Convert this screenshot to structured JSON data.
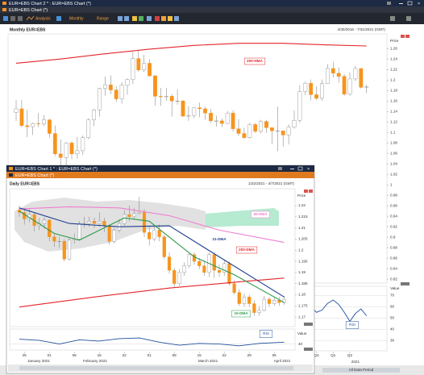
{
  "outer_window": {
    "title": "EUR=EBS Chart 2 * : EUR=EBS Chart (*)",
    "tab": "EUR=EBS Chart (*)",
    "toolbar": [
      "Analysis",
      "Monthly",
      "Range"
    ],
    "chart": {
      "header": "Monthly EUR=EBS",
      "date_range": "4/30/2016 - 7/31/2021 (GMT)",
      "axis_label": "Price",
      "ylim": [
        0.814,
        1.285
      ],
      "yticks": [
        1.26,
        1.24,
        1.22,
        1.2,
        1.18,
        1.16,
        1.14,
        1.12,
        1.1,
        1.08,
        1.06,
        1.04,
        1.02,
        1,
        0.98,
        0.96,
        0.94,
        0.92,
        0.9,
        0.88,
        0.86,
        0.84,
        0.82
      ],
      "up_color": "#ffffff",
      "down_color": "#f7941d",
      "open": [
        1.138,
        1.145,
        1.113,
        1.111,
        1.117,
        1.116,
        1.124,
        1.098,
        1.059,
        1.052,
        1.08,
        1.059,
        1.065,
        1.09,
        1.124,
        1.143,
        1.184,
        1.191,
        1.181,
        1.164,
        1.19,
        1.201,
        1.241,
        1.219,
        1.232,
        1.208,
        1.169,
        1.168,
        1.169,
        1.16,
        1.16,
        1.131,
        1.132,
        1.147,
        1.145,
        1.137,
        1.122,
        1.122,
        1.117,
        1.137,
        1.107,
        1.098,
        1.09,
        1.115,
        1.102,
        1.121,
        1.109,
        1.103,
        1.103,
        1.095,
        1.11,
        1.123,
        1.178,
        1.194,
        1.172,
        1.165,
        1.193,
        1.222,
        1.213,
        1.207,
        1.173,
        1.202,
        1.222,
        1.186
      ],
      "high": [
        1.162,
        1.162,
        1.143,
        1.119,
        1.137,
        1.133,
        1.126,
        1.113,
        1.087,
        1.082,
        1.083,
        1.091,
        1.094,
        1.127,
        1.145,
        1.185,
        1.207,
        1.209,
        1.188,
        1.196,
        1.203,
        1.254,
        1.256,
        1.248,
        1.24,
        1.21,
        1.185,
        1.185,
        1.173,
        1.182,
        1.162,
        1.15,
        1.148,
        1.157,
        1.149,
        1.145,
        1.132,
        1.127,
        1.141,
        1.142,
        1.125,
        1.109,
        1.118,
        1.118,
        1.124,
        1.124,
        1.109,
        1.149,
        1.101,
        1.115,
        1.142,
        1.19,
        1.197,
        1.201,
        1.188,
        1.201,
        1.23,
        1.235,
        1.224,
        1.211,
        1.215,
        1.227,
        1.222,
        1.191
      ],
      "low": [
        1.122,
        1.11,
        1.091,
        1.095,
        1.11,
        1.112,
        1.09,
        1.055,
        1.035,
        1.034,
        1.049,
        1.05,
        1.057,
        1.087,
        1.112,
        1.13,
        1.17,
        1.173,
        1.158,
        1.155,
        1.172,
        1.192,
        1.216,
        1.215,
        1.206,
        1.151,
        1.151,
        1.16,
        1.13,
        1.153,
        1.13,
        1.122,
        1.127,
        1.129,
        1.124,
        1.118,
        1.111,
        1.11,
        1.116,
        1.102,
        1.093,
        1.088,
        1.088,
        1.099,
        1.098,
        1.099,
        1.078,
        1.064,
        1.073,
        1.077,
        1.107,
        1.118,
        1.171,
        1.161,
        1.162,
        1.16,
        1.193,
        1.205,
        1.195,
        1.17,
        1.17,
        1.198,
        1.184,
        1.175
      ],
      "close": [
        1.145,
        1.113,
        1.111,
        1.117,
        1.116,
        1.124,
        1.098,
        1.059,
        1.052,
        1.08,
        1.059,
        1.065,
        1.09,
        1.124,
        1.143,
        1.184,
        1.191,
        1.181,
        1.164,
        1.19,
        1.201,
        1.241,
        1.219,
        1.232,
        1.208,
        1.169,
        1.168,
        1.169,
        1.16,
        1.16,
        1.131,
        1.132,
        1.147,
        1.145,
        1.137,
        1.122,
        1.122,
        1.117,
        1.137,
        1.107,
        1.098,
        1.09,
        1.115,
        1.102,
        1.121,
        1.109,
        1.103,
        1.103,
        1.095,
        1.11,
        1.123,
        1.178,
        1.194,
        1.172,
        1.165,
        1.193,
        1.222,
        1.213,
        1.207,
        1.173,
        1.202,
        1.222,
        1.186,
        1.187
      ],
      "overlay": {
        "name": "200-HMA",
        "color": "#e3262b",
        "x": [
          0,
          8,
          16,
          24,
          32,
          40,
          48,
          56,
          63
        ],
        "values": [
          1.232,
          1.24,
          1.25,
          1.259,
          1.266,
          1.27,
          1.27,
          1.267,
          1.265
        ]
      },
      "xticks": [
        {
          "value": 54,
          "label": "Q4"
        },
        {
          "value": 57,
          "label": "Q1"
        },
        {
          "value": 60,
          "label": "Q2"
        }
      ],
      "year_label": {
        "value": 61,
        "label": "2021"
      },
      "scroll_label": "All Data Period",
      "rsi": {
        "name": "RSI",
        "axis_label": "Value",
        "color": "#1f4e9c",
        "ylim": [
          23,
          76
        ],
        "yticks": [
          70,
          60,
          50,
          40,
          30
        ],
        "x": [
          53,
          54,
          55,
          56,
          57,
          58,
          59,
          60,
          61,
          62,
          63
        ],
        "values": [
          60,
          55,
          57,
          63,
          66,
          62,
          55,
          47,
          54,
          58,
          52
        ]
      }
    }
  },
  "inner_window": {
    "title": "EUR=EBS Chart 1 * : EUR=EBS Chart (*)",
    "tab": "EUR=EBS Chart (*)",
    "chart": {
      "header": "Daily EUR=EBS",
      "date_range": "1/22/2021 - 4/7/2021 (GMT)",
      "axis_label": "Price",
      "ylim": [
        1.1657,
        1.2276
      ],
      "yticks": [
        1.22,
        1.215,
        1.21,
        1.205,
        1.2,
        1.195,
        1.19,
        1.185,
        1.18,
        1.175,
        1.17
      ],
      "up_color": "#ffffff",
      "down_color": "#f7941d",
      "open": [
        1.218,
        1.217,
        1.214,
        1.216,
        1.211,
        1.212,
        1.2135,
        1.206,
        1.204,
        1.204,
        1.196,
        1.2045,
        1.205,
        1.212,
        1.212,
        1.213,
        1.212,
        1.213,
        1.211,
        1.204,
        1.209,
        1.212,
        1.216,
        1.215,
        1.2165,
        1.217,
        1.208,
        1.205,
        1.209,
        1.206,
        1.197,
        1.191,
        1.185,
        1.19,
        1.193,
        1.198,
        1.195,
        1.193,
        1.19,
        1.198,
        1.191,
        1.19,
        1.194,
        1.185,
        1.181,
        1.176,
        1.179,
        1.176,
        1.172,
        1.173,
        1.178,
        1.176,
        1.1775,
        1.1765
      ],
      "high": [
        1.22,
        1.219,
        1.2185,
        1.217,
        1.2145,
        1.215,
        1.214,
        1.2075,
        1.206,
        1.205,
        1.2055,
        1.2075,
        1.213,
        1.215,
        1.215,
        1.2145,
        1.217,
        1.2145,
        1.2115,
        1.21,
        1.214,
        1.218,
        1.22,
        1.219,
        1.224,
        1.2185,
        1.211,
        1.211,
        1.2115,
        1.207,
        1.199,
        1.192,
        1.1915,
        1.1945,
        1.199,
        1.199,
        1.1965,
        1.195,
        1.199,
        1.199,
        1.1935,
        1.1955,
        1.195,
        1.1865,
        1.1825,
        1.1805,
        1.18,
        1.1775,
        1.175,
        1.1795,
        1.179,
        1.179,
        1.179,
        1.1795
      ],
      "low": [
        1.215,
        1.2115,
        1.2125,
        1.2085,
        1.209,
        1.2095,
        1.204,
        1.2015,
        1.201,
        1.195,
        1.1955,
        1.203,
        1.2045,
        1.21,
        1.2105,
        1.21,
        1.2105,
        1.208,
        1.2025,
        1.203,
        1.208,
        1.211,
        1.213,
        1.214,
        1.216,
        1.206,
        1.202,
        1.204,
        1.204,
        1.196,
        1.1895,
        1.1835,
        1.184,
        1.1885,
        1.192,
        1.1935,
        1.1915,
        1.1885,
        1.188,
        1.1875,
        1.188,
        1.1885,
        1.184,
        1.18,
        1.175,
        1.1745,
        1.1745,
        1.1705,
        1.1705,
        1.1725,
        1.1745,
        1.175,
        1.175,
        1.1755
      ],
      "close": [
        1.217,
        1.214,
        1.216,
        1.211,
        1.212,
        1.2135,
        1.206,
        1.204,
        1.204,
        1.196,
        1.2045,
        1.205,
        1.212,
        1.212,
        1.213,
        1.212,
        1.213,
        1.211,
        1.204,
        1.209,
        1.212,
        1.216,
        1.215,
        1.2165,
        1.217,
        1.208,
        1.205,
        1.209,
        1.206,
        1.197,
        1.191,
        1.185,
        1.19,
        1.193,
        1.198,
        1.195,
        1.193,
        1.19,
        1.198,
        1.191,
        1.19,
        1.194,
        1.185,
        1.181,
        1.176,
        1.179,
        1.176,
        1.172,
        1.173,
        1.178,
        1.176,
        1.1775,
        1.1765,
        1.178
      ],
      "overlays": [
        {
          "name": "55-DMA",
          "color": "#f07fd0",
          "x": [
            0,
            10,
            20,
            30,
            40,
            53
          ],
          "values": [
            1.2185,
            1.2195,
            1.219,
            1.2155,
            1.209,
            1.2035
          ]
        },
        {
          "name": "21-DMA",
          "color": "#1f3f8f",
          "x": [
            0,
            10,
            20,
            30,
            40,
            53
          ],
          "values": [
            1.219,
            1.212,
            1.2105,
            1.211,
            1.197,
            1.179
          ]
        },
        {
          "name": "200-DMA",
          "color": "#e3262b",
          "x": [
            0,
            15,
            30,
            45,
            53
          ],
          "values": [
            1.1745,
            1.179,
            1.183,
            1.186,
            1.1875
          ]
        },
        {
          "name": "10-DMA",
          "color": "#2f9a4a",
          "x": [
            0,
            7,
            12,
            21,
            26,
            35,
            43,
            53
          ],
          "values": [
            1.2175,
            1.2075,
            1.2045,
            1.2145,
            1.213,
            1.197,
            1.189,
            1.1765
          ]
        }
      ],
      "xticks": [
        {
          "value": 1,
          "label": "25"
        },
        {
          "value": 6,
          "label": "01"
        },
        {
          "value": 11,
          "label": "08"
        },
        {
          "value": 16,
          "label": "15"
        },
        {
          "value": 21,
          "label": "22"
        },
        {
          "value": 26,
          "label": "01"
        },
        {
          "value": 31,
          "label": "08"
        },
        {
          "value": 36,
          "label": "15"
        },
        {
          "value": 41,
          "label": "22"
        },
        {
          "value": 46,
          "label": "29"
        },
        {
          "value": 51,
          "label": "05"
        }
      ],
      "months": [
        "January 2021",
        "February 2021",
        "March 2021",
        "April 2021"
      ],
      "rsi": {
        "name": "RSI",
        "axis_label": "Value",
        "color": "#1f4e9c",
        "ylim": [
          30,
          65
        ],
        "yticks": [
          40
        ],
        "x": [
          0,
          4,
          8,
          12,
          16,
          20,
          24,
          28,
          32,
          36,
          40,
          44,
          48,
          53
        ],
        "values": [
          48,
          46,
          40,
          47,
          45,
          49,
          50,
          43,
          38,
          41,
          40,
          37,
          41,
          43
        ]
      }
    }
  }
}
